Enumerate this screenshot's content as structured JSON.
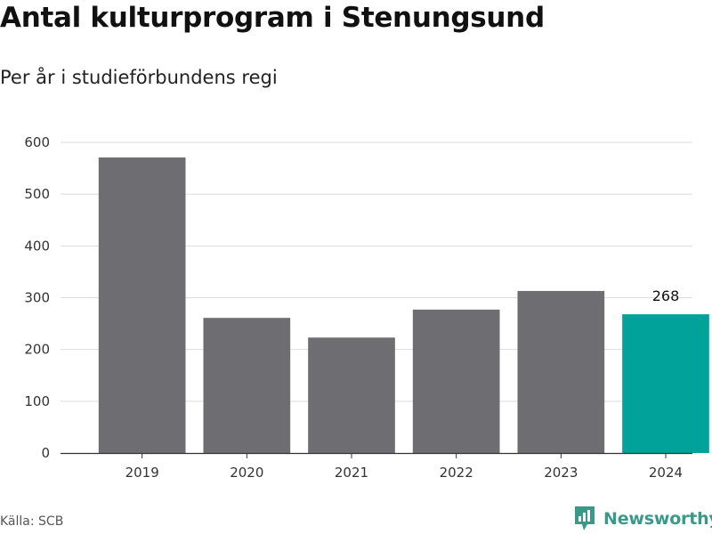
{
  "title": "Antal kulturprogram i Stenungsund",
  "subtitle": "Per år i studieförbundens regi",
  "source": "Källa: SCB",
  "brand": {
    "name": "Newsworthy",
    "icon": "newsworthy-logo-icon",
    "color": "#3a9a8a"
  },
  "colors": {
    "bar": "#6d6d72",
    "highlight": "#00a29a",
    "grid": "#dddddd",
    "axis": "#333333"
  },
  "chart_data": {
    "type": "bar",
    "categories": [
      "2019",
      "2020",
      "2021",
      "2022",
      "2023",
      "2024"
    ],
    "values": [
      571,
      261,
      223,
      277,
      313,
      268
    ],
    "highlight_index": 5,
    "data_labels": [
      {
        "index": 5,
        "text": "268"
      }
    ],
    "ylim": [
      0,
      600
    ],
    "yticks": [
      0,
      100,
      200,
      300,
      400,
      500,
      600
    ],
    "grid": true,
    "xlabel": "",
    "ylabel": ""
  }
}
